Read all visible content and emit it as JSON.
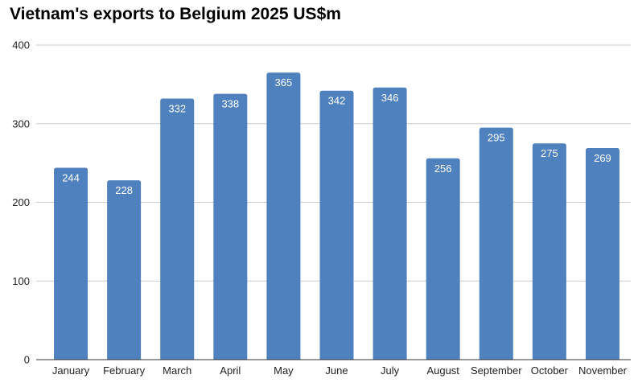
{
  "chart_data": {
    "type": "bar",
    "title": "Vietnam's exports to Belgium 2025 US$m",
    "xlabel": "",
    "ylabel": "",
    "categories": [
      "January",
      "February",
      "March",
      "April",
      "May",
      "June",
      "July",
      "August",
      "September",
      "October",
      "November"
    ],
    "values": [
      244,
      228,
      332,
      338,
      365,
      342,
      346,
      256,
      295,
      275,
      269
    ],
    "ylim": [
      0,
      400
    ],
    "yticks": [
      0,
      100,
      200,
      300,
      400
    ],
    "grid": true,
    "legend": "none",
    "data_labels": true,
    "bar_color": "#4e81bd",
    "grid_color": "#cccccc",
    "axis_color": "#333333"
  }
}
